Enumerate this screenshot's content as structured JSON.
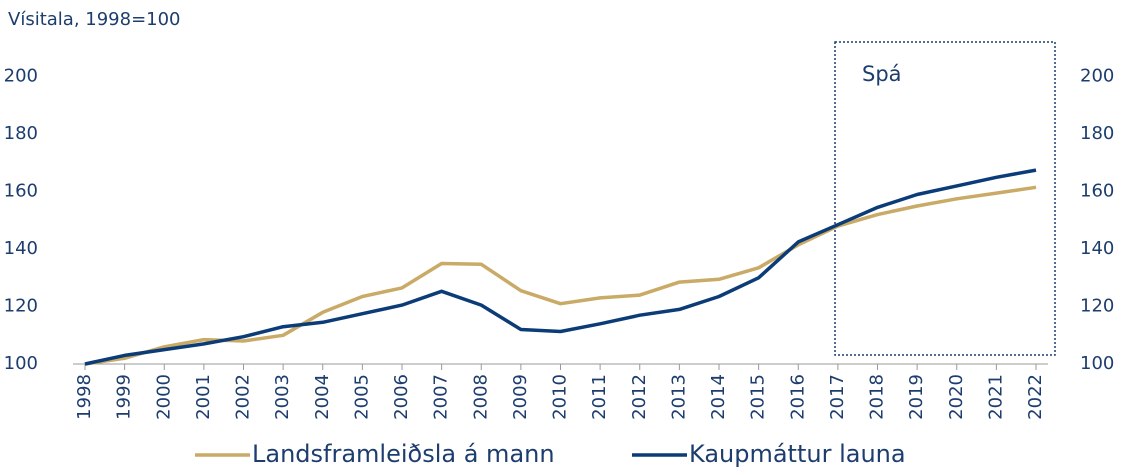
{
  "chart_data": {
    "type": "line",
    "y_axis_label": "Vísitala, 1998=100",
    "annotation": "Spá",
    "categories": [
      "1998",
      "1999",
      "2000",
      "2001",
      "2002",
      "2003",
      "2004",
      "2005",
      "2006",
      "2007",
      "2008",
      "2009",
      "2010",
      "2011",
      "2012",
      "2013",
      "2014",
      "2015",
      "2016",
      "2017",
      "2018",
      "2019",
      "2020",
      "2021",
      "2022"
    ],
    "series": [
      {
        "name": "Landsframleiðsla á mann",
        "color": "#c9aa66",
        "values": [
          100,
          102,
          106,
          108.5,
          108,
          110,
          118,
          123.5,
          126.5,
          135,
          134.7,
          125.5,
          121,
          123,
          124,
          128.5,
          129.5,
          133.5,
          141.5,
          148,
          152,
          155,
          157.5,
          159.5,
          161.5
        ]
      },
      {
        "name": "Kaupmáttur launa",
        "color": "#0b3c78",
        "values": [
          100,
          103,
          105,
          107,
          109.5,
          113,
          114.5,
          117.5,
          120.5,
          125.3,
          120.5,
          112,
          111.3,
          114,
          117,
          119,
          123.5,
          130,
          142.5,
          148.5,
          154.5,
          159,
          162,
          165,
          167.5
        ]
      }
    ],
    "ylim": [
      100,
      210
    ],
    "yticks": [
      100,
      120,
      140,
      160,
      180,
      200
    ],
    "right_axis_mirror": true
  }
}
